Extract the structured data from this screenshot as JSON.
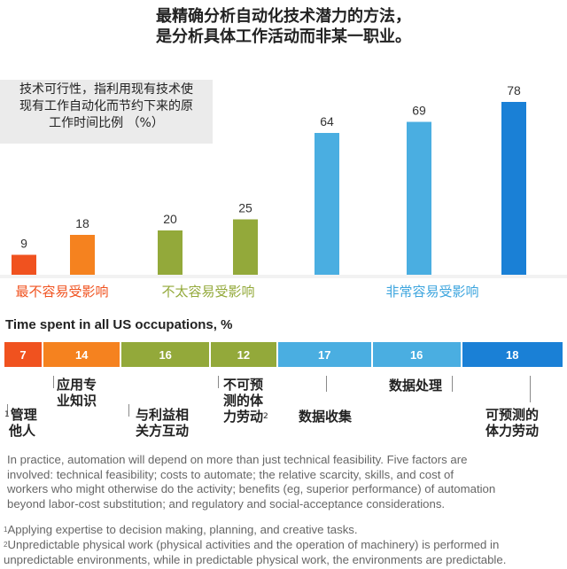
{
  "title": {
    "line1": "最精确分析自动化技术潜力的方法，",
    "line2": "是分析具体工作活动而非某一职业。"
  },
  "legend": {
    "line1": "技术可行性，指利用现有技术使",
    "line2": "现有工作自动化而节约下来的原",
    "line3": "工作时间比例 （%）"
  },
  "chart_data": {
    "type": "bar",
    "title": "技术可行性，指利用现有技术使现有工作自动化而节约下来的原工作时间比例 （%）",
    "categories": [
      "管理他人",
      "应用专业知识",
      "与利益相关方互动",
      "不可预测的体力劳动",
      "数据收集",
      "数据处理",
      "可预测的体力劳动"
    ],
    "values": [
      9,
      18,
      20,
      25,
      64,
      69,
      78
    ],
    "colors": [
      "#f0521f",
      "#f5821f",
      "#93a93a",
      "#93a93a",
      "#4aaee1",
      "#4aaee1",
      "#1a80d6"
    ],
    "ylim": [
      0,
      80
    ],
    "groups": [
      {
        "label": "最不容易受影响",
        "color": "#f0521f"
      },
      {
        "label": "不太容易受影响",
        "color": "#93a93a"
      },
      {
        "label": "非常容易受影响",
        "color": "#3da5de"
      }
    ]
  },
  "time_spent": {
    "title": "Time spent in all US occupations, %",
    "values": [
      7,
      14,
      16,
      12,
      17,
      16,
      18
    ],
    "colors": [
      "#f0521f",
      "#f5821f",
      "#93a93a",
      "#93a93a",
      "#4aaee1",
      "#4aaee1",
      "#1a80d6"
    ]
  },
  "activities": [
    {
      "sup": "1",
      "line1": "管理",
      "line2": "他人"
    },
    {
      "line1": "应用专",
      "line2": "业知识"
    },
    {
      "line1": "与利益相",
      "line2": "关方互动"
    },
    {
      "line1": "不可预",
      "line2": "测的体",
      "line3": "力劳动",
      "sup": "2"
    },
    {
      "line1": "数据收集"
    },
    {
      "line1": "数据处理"
    },
    {
      "line1": "可预测的",
      "line2": "体力劳动"
    }
  ],
  "paragraph": {
    "line1": "In practice, automation will depend on more than just technical feasibility. Five factors are",
    "line2": "involved: technical feasibility; costs to automate; the relative scarcity, skills, and cost of",
    "line3": "workers who might otherwise do the activity; benefits (eg, superior performance) of automation",
    "line4": "beyond labor-cost substitution; and regulatory and social-acceptance considerations."
  },
  "footnotes": [
    {
      "sup": "1",
      "line1": "Applying expertise to decision making, planning, and creative tasks."
    },
    {
      "sup": "2",
      "line1": "Unpredictable physical work (physical activities and the operation of machinery) is performed in",
      "line2": "unpredictable environments, while in predictable physical work, the environments are predictable."
    }
  ]
}
